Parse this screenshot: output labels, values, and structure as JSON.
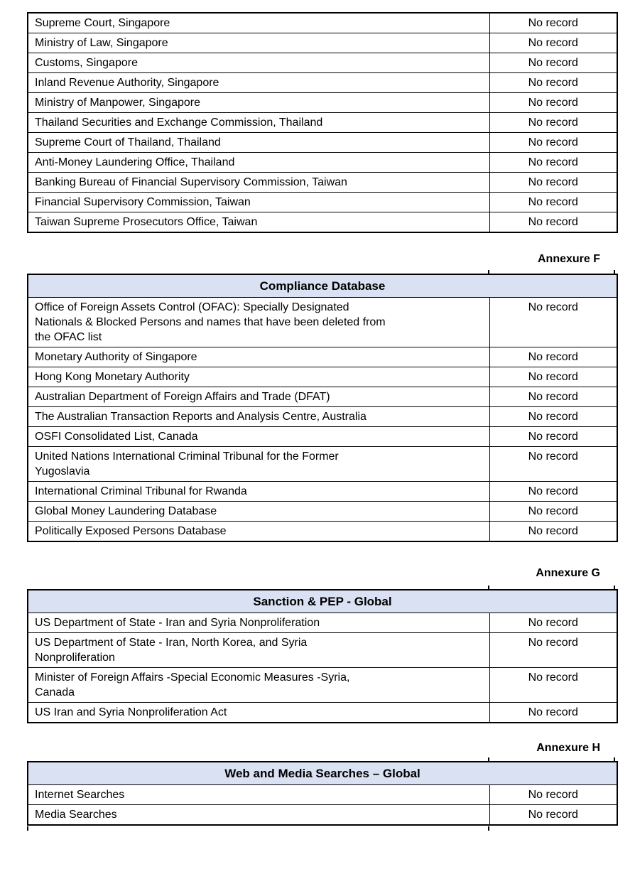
{
  "page": {
    "background_color": "#ffffff",
    "header_bg_color": "#D9E1F2",
    "border_color": "#000000",
    "result_label_common": "No record"
  },
  "tables": [
    {
      "id": "regulatory-sources-continued",
      "annexure": null,
      "header": null,
      "rows": [
        {
          "source": "Supreme Court, Singapore",
          "result": "No record"
        },
        {
          "source": "Ministry of Law, Singapore",
          "result": "No record"
        },
        {
          "source": "Customs, Singapore",
          "result": "No record"
        },
        {
          "source": "Inland Revenue Authority, Singapore",
          "result": "No record"
        },
        {
          "source": "Ministry of Manpower, Singapore",
          "result": "No record"
        },
        {
          "source": "Thailand Securities and Exchange Commission, Thailand",
          "result": "No record"
        },
        {
          "source": "Supreme Court of Thailand, Thailand",
          "result": "No record"
        },
        {
          "source": "Anti-Money Laundering Office, Thailand",
          "result": "No record"
        },
        {
          "source": "Banking Bureau of Financial Supervisory Commission, Taiwan",
          "result": "No record"
        },
        {
          "source": "Financial Supervisory Commission, Taiwan",
          "result": "No record"
        },
        {
          "source": "Taiwan Supreme Prosecutors Office, Taiwan",
          "result": "No record"
        }
      ]
    },
    {
      "id": "compliance-database",
      "annexure": "Annexure F",
      "header": "Compliance Database",
      "rows": [
        {
          "source": "Office of Foreign Assets Control (OFAC): Specially Designated\nNationals & Blocked Persons and names that have been deleted from\nthe OFAC list",
          "result": "No record"
        },
        {
          "source": "Monetary Authority of Singapore",
          "result": "No record"
        },
        {
          "source": "Hong Kong Monetary Authority",
          "result": "No record"
        },
        {
          "source": "Australian Department of Foreign Affairs and Trade (DFAT)",
          "result": "No record"
        },
        {
          "source": "The Australian Transaction Reports and Analysis Centre, Australia",
          "result": "No record"
        },
        {
          "source": "OSFI Consolidated List, Canada",
          "result": "No record"
        },
        {
          "source": "United Nations International Criminal Tribunal for the Former\nYugoslavia",
          "result": "No record"
        },
        {
          "source": "International Criminal Tribunal for Rwanda",
          "result": "No record"
        },
        {
          "source": "Global Money Laundering Database",
          "result": "No record"
        },
        {
          "source": "Politically Exposed Persons Database",
          "result": "No record"
        }
      ]
    },
    {
      "id": "sanction-pep-global",
      "annexure": "Annexure G",
      "header": "Sanction & PEP - Global",
      "rows": [
        {
          "source": "US Department of State - Iran and Syria Nonproliferation",
          "result": "No record"
        },
        {
          "source": "US Department of State - Iran, North Korea, and Syria\nNonproliferation",
          "result": "No record"
        },
        {
          "source": "Minister of Foreign Affairs -Special Economic Measures -Syria,\nCanada",
          "result": "No record"
        },
        {
          "source": "US Iran and Syria Nonproliferation Act",
          "result": "No record"
        }
      ]
    },
    {
      "id": "web-media-searches-global",
      "annexure": "Annexure H",
      "header": "Web and Media Searches – Global",
      "rows": [
        {
          "source": "Internet Searches",
          "result": "No record"
        },
        {
          "source": "Media Searches",
          "result": "No record"
        }
      ]
    }
  ]
}
